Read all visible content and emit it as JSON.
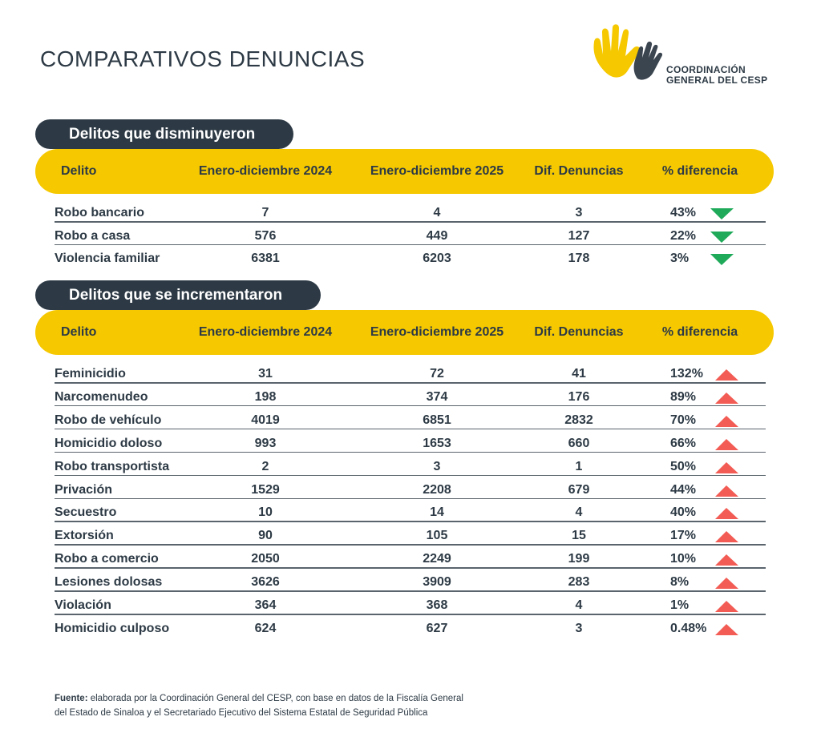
{
  "header": {
    "title": "COMPARATIVOS DENUNCIAS",
    "logo": [
      "COORDINACIÓN",
      "GENERAL DEL CESP"
    ]
  },
  "sections": [
    {
      "title": "Delitos que disminuyeron",
      "columns": [
        "Delito",
        "Enero-diciembre 2024",
        "Enero-diciembre 2025",
        "Dif. Denuncias",
        "% diferencia"
      ],
      "rows": [
        [
          "Robo bancario",
          7,
          4,
          3,
          "43%"
        ],
        [
          "Robo a casa",
          576,
          449,
          127,
          "22%"
        ],
        [
          "Violencia familiar",
          6381,
          6203,
          178,
          "3%"
        ]
      ]
    },
    {
      "title": "Delitos que se incrementaron",
      "columns": [
        "Delito",
        "Enero-diciembre 2024",
        "Enero-diciembre 2025",
        "Dif. Denuncias",
        "% diferencia"
      ],
      "rows": [
        [
          "Feminicidio",
          31,
          72,
          41,
          "132%"
        ],
        [
          "Narcomenudeo",
          198,
          374,
          176,
          "89%"
        ],
        [
          "Robo de vehículo",
          4019,
          6851,
          2832,
          "70%"
        ],
        [
          "Homicidio doloso",
          993,
          1653,
          660,
          "66%"
        ],
        [
          "Robo transportista",
          2,
          3,
          1,
          "50%"
        ],
        [
          "Privación",
          1529,
          2208,
          679,
          "44%"
        ],
        [
          "Secuestro",
          10,
          14,
          4,
          "40%"
        ],
        [
          "Extorsión",
          90,
          105,
          15,
          "17%"
        ],
        [
          "Robo a comercio",
          2050,
          2249,
          199,
          "10%"
        ],
        [
          "Lesiones dolosas",
          3626,
          3909,
          283,
          "8%"
        ],
        [
          "Violación",
          364,
          368,
          4,
          "1%"
        ],
        [
          "Homicidio culposo",
          624,
          627,
          3,
          "0.48%"
        ]
      ]
    }
  ],
  "footer": {
    "label": "Fuente:",
    "lines": [
      "elaborada por la Coordinación General del CESP, con base en datos de la Fiscalía General",
      "del Estado de Sinaloa y el Secretariado Ejecutivo del Sistema Estatal de Seguridad Pública"
    ]
  }
}
